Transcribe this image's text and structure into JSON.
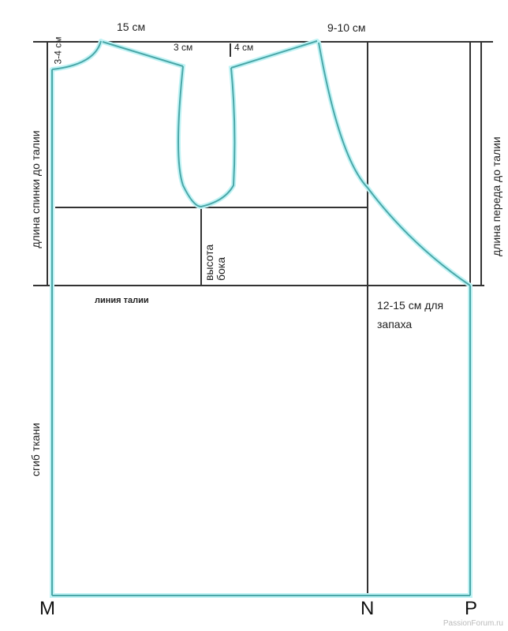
{
  "labels": {
    "neck_width": "15 см",
    "neck_depth_back": "3-4 см",
    "shoulder_left_offset": "3 см",
    "shoulder_right_offset": "4 см",
    "front_neck": "9-10 см",
    "back_length": "длина спинки до талии",
    "front_length": "длина переда до талии",
    "side_height": "высота бока",
    "waist_line": "линия талии",
    "wrap_allowance_line1": "12-15 см для",
    "wrap_allowance_line2": "запаха",
    "fabric_fold": "сгиб ткани",
    "point_m": "M",
    "point_n": "N",
    "point_p": "P"
  },
  "watermark": "PassionForum.ru",
  "colors": {
    "construction_line": "#333333",
    "pattern_line": "#4aa7a8",
    "glow": "#bff3f5"
  }
}
